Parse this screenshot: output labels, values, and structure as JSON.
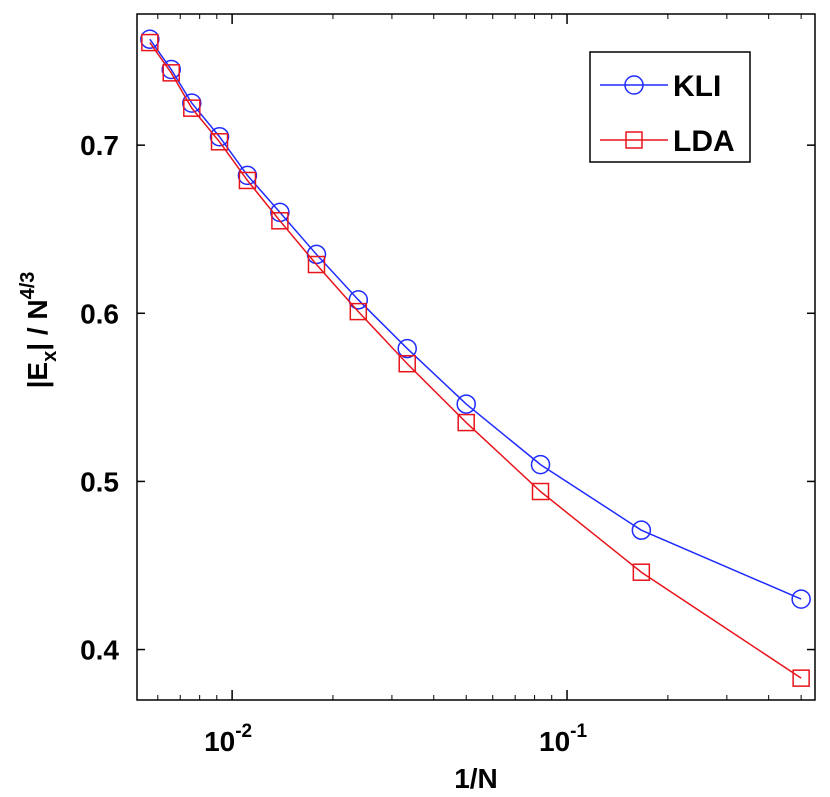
{
  "chart_data": {
    "type": "line",
    "x_scale": "log",
    "xlabel": "1/N",
    "ylabel_parts": {
      "prefix": "|E",
      "subscript": "x",
      "mid": "| / N",
      "superscript": "4/3"
    },
    "xlim": [
      0.0052,
      0.55
    ],
    "ylim": [
      0.37,
      0.778
    ],
    "x_ticks": [
      {
        "value": 0.01,
        "base": "10",
        "exponent": "-2"
      },
      {
        "value": 0.1,
        "base": "10",
        "exponent": "-1"
      }
    ],
    "y_ticks": [
      {
        "value": 0.4,
        "label": "0.4"
      },
      {
        "value": 0.5,
        "label": "0.5"
      },
      {
        "value": 0.6,
        "label": "0.6"
      },
      {
        "value": 0.7,
        "label": "0.7"
      }
    ],
    "x": [
      0.00568,
      0.00658,
      0.00758,
      0.00917,
      0.01111,
      0.01389,
      0.01786,
      0.02381,
      0.03333,
      0.05,
      0.08333,
      0.16667,
      0.5
    ],
    "series": [
      {
        "name": "KLI",
        "color": "#1f2bff",
        "marker": "circle",
        "values": [
          0.763,
          0.745,
          0.725,
          0.705,
          0.682,
          0.66,
          0.635,
          0.608,
          0.579,
          0.546,
          0.51,
          0.471,
          0.43
        ]
      },
      {
        "name": "LDA",
        "color": "#e8141c",
        "marker": "square",
        "values": [
          0.761,
          0.743,
          0.722,
          0.702,
          0.679,
          0.655,
          0.629,
          0.601,
          0.57,
          0.535,
          0.494,
          0.446,
          0.383
        ]
      }
    ],
    "legend_position": "top-right",
    "grid": false
  }
}
